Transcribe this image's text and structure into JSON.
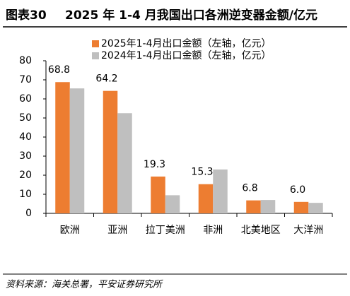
{
  "chart_data": {
    "type": "bar",
    "title_label": "图表30",
    "title": "2025 年 1-4 月我国出口各洲逆变器金额/亿元",
    "source": "资料来源：海关总署，平安证券研究所",
    "categories": [
      "欧洲",
      "亚洲",
      "拉丁美洲",
      "非洲",
      "北美地区",
      "大洋洲"
    ],
    "series": [
      {
        "name": "2025年1-4月出口金额（左轴，亿元）",
        "color": "#ed7d31",
        "values": [
          68.8,
          64.2,
          19.3,
          15.3,
          6.8,
          6.0
        ],
        "value_labels": [
          "68.8",
          "64.2",
          "19.3",
          "15.3",
          "6.8",
          "6.0"
        ]
      },
      {
        "name": "2024年1-4月出口金额（左轴，亿元）",
        "color": "#bfbfbf",
        "values": [
          65.5,
          52.5,
          9.5,
          23,
          7,
          5.5
        ]
      }
    ],
    "ylim": [
      0,
      80
    ],
    "yticks": [
      0,
      10,
      20,
      30,
      40,
      50,
      60,
      70,
      80
    ]
  }
}
